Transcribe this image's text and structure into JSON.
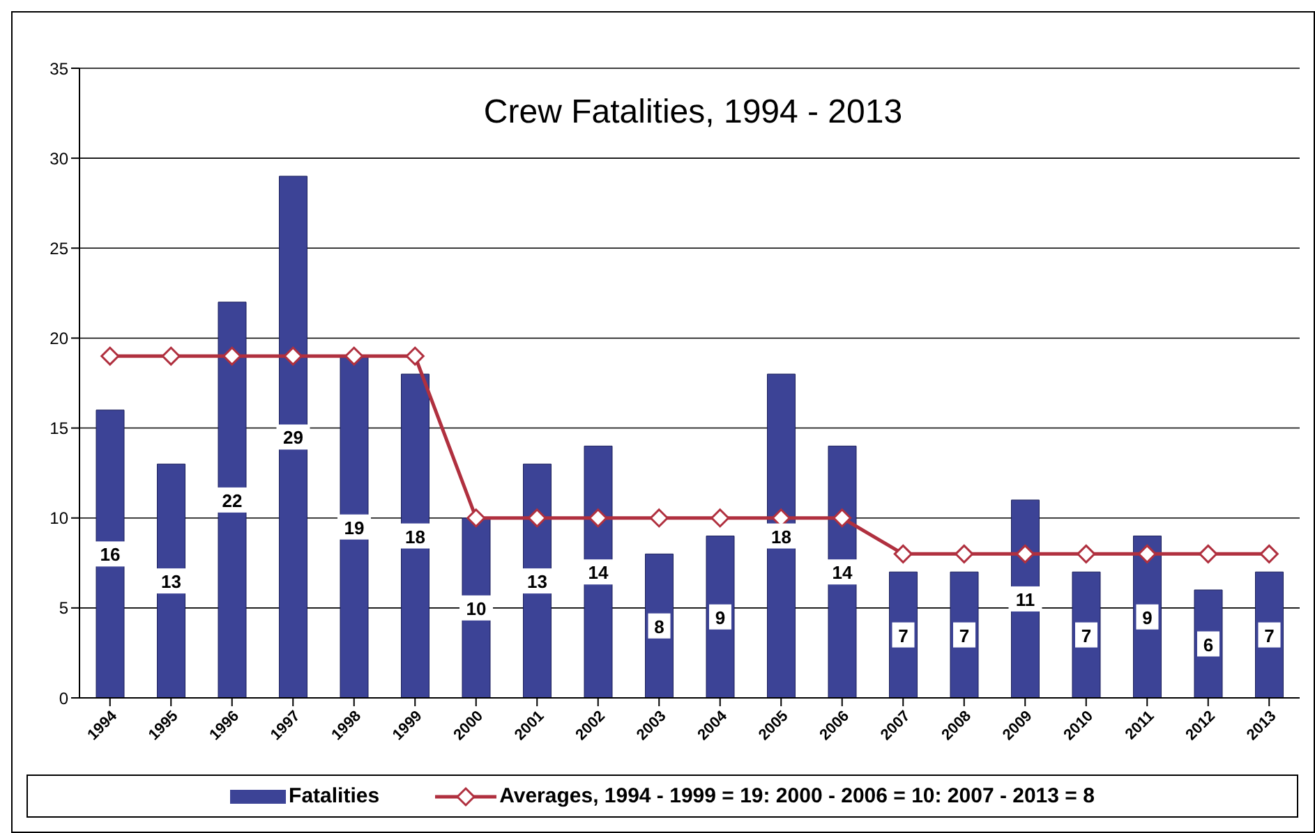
{
  "chart_data": {
    "type": "bar",
    "title": "Crew Fatalities, 1994 - 2013",
    "categories": [
      "1994",
      "1995",
      "1996",
      "1997",
      "1998",
      "1999",
      "2000",
      "2001",
      "2002",
      "2003",
      "2004",
      "2005",
      "2006",
      "2007",
      "2008",
      "2009",
      "2010",
      "2011",
      "2012",
      "2013"
    ],
    "series": [
      {
        "name": "Fatalities",
        "color": "#3c4396",
        "values": [
          16,
          13,
          22,
          29,
          19,
          18,
          10,
          13,
          14,
          8,
          9,
          18,
          14,
          7,
          7,
          11,
          7,
          9,
          6,
          7
        ],
        "value_labels": [
          "16",
          "13",
          "22",
          "29",
          "19",
          "18",
          "10",
          "13",
          "14",
          "8",
          "9",
          "18",
          "14",
          "7",
          "7",
          "11",
          "7",
          "9",
          "6",
          "7"
        ]
      },
      {
        "name": "Averages, 1994 - 1999 = 19: 2000 - 2006 = 10: 2007 - 2013 = 8",
        "type": "line",
        "color": "#b0303f",
        "values": [
          19,
          19,
          19,
          19,
          19,
          19,
          10,
          10,
          10,
          10,
          10,
          10,
          10,
          8,
          8,
          8,
          8,
          8,
          8,
          8
        ]
      }
    ],
    "ylim": [
      0,
      35
    ],
    "yticks": [
      0,
      5,
      10,
      15,
      20,
      25,
      30,
      35
    ],
    "grid": "y",
    "legend": "bottom",
    "marker": "diamond",
    "line_style": "solid"
  }
}
